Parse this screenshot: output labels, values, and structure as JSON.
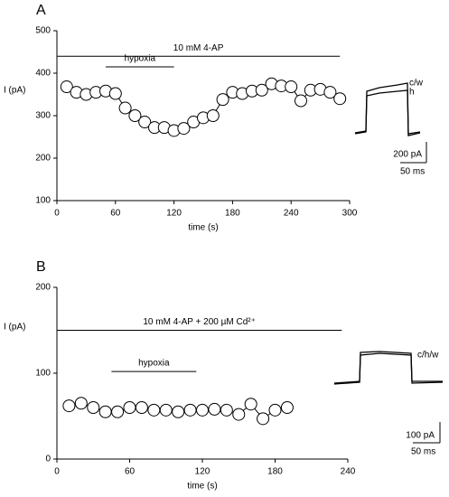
{
  "chart_data": [
    {
      "type": "line",
      "panel": "A",
      "xlabel": "time (s)",
      "ylabel": "I (pA)",
      "x": [
        10,
        20,
        30,
        40,
        50,
        60,
        70,
        80,
        90,
        100,
        110,
        120,
        130,
        140,
        150,
        160,
        170,
        180,
        190,
        200,
        210,
        220,
        230,
        240,
        250,
        260,
        270,
        280,
        290
      ],
      "series": [
        {
          "color": "#000000",
          "values": [
            368,
            355,
            350,
            355,
            358,
            352,
            318,
            300,
            285,
            272,
            272,
            265,
            270,
            285,
            295,
            300,
            338,
            355,
            352,
            358,
            360,
            375,
            370,
            368,
            335,
            360,
            362,
            355,
            340
          ]
        }
      ],
      "xlim": [
        0,
        300
      ],
      "xticks": [
        0,
        60,
        120,
        180,
        240,
        300
      ],
      "ylim": [
        100,
        500
      ],
      "yticks": [
        100,
        200,
        300,
        400,
        500
      ],
      "annotations": [
        {
          "text": "10 mM 4-AP",
          "x": [
            0,
            290
          ],
          "y": 440
        },
        {
          "text": "hypoxia",
          "x": [
            50,
            120
          ],
          "y": 415
        }
      ],
      "inset": {
        "labels": [
          "c/w",
          "h"
        ],
        "scale_y": "200 pA",
        "scale_x": "50 ms"
      }
    },
    {
      "type": "line",
      "panel": "B",
      "xlabel": "time (s)",
      "ylabel": "I (pA)",
      "x": [
        10,
        20,
        30,
        40,
        50,
        60,
        70,
        80,
        90,
        100,
        110,
        120,
        130,
        140,
        150,
        160,
        170,
        180,
        190
      ],
      "series": [
        {
          "color": "#000000",
          "values": [
            62,
            65,
            60,
            55,
            55,
            60,
            60,
            57,
            57,
            55,
            57,
            57,
            58,
            57,
            52,
            64,
            47,
            57,
            60
          ]
        }
      ],
      "xlim": [
        0,
        240
      ],
      "xticks": [
        0,
        60,
        120,
        180,
        240
      ],
      "ylim": [
        0,
        200
      ],
      "yticks": [
        0,
        100,
        200
      ],
      "annotations": [
        {
          "text": "10 mM 4-AP + 200 µM Cd²⁺",
          "x": [
            0,
            235
          ],
          "y": 150
        },
        {
          "text": "hypoxia",
          "x": [
            45,
            115
          ],
          "y": 102
        }
      ],
      "inset": {
        "labels": [
          "c/h/w"
        ],
        "scale_y": "100 pA",
        "scale_x": "50 ms"
      }
    }
  ]
}
